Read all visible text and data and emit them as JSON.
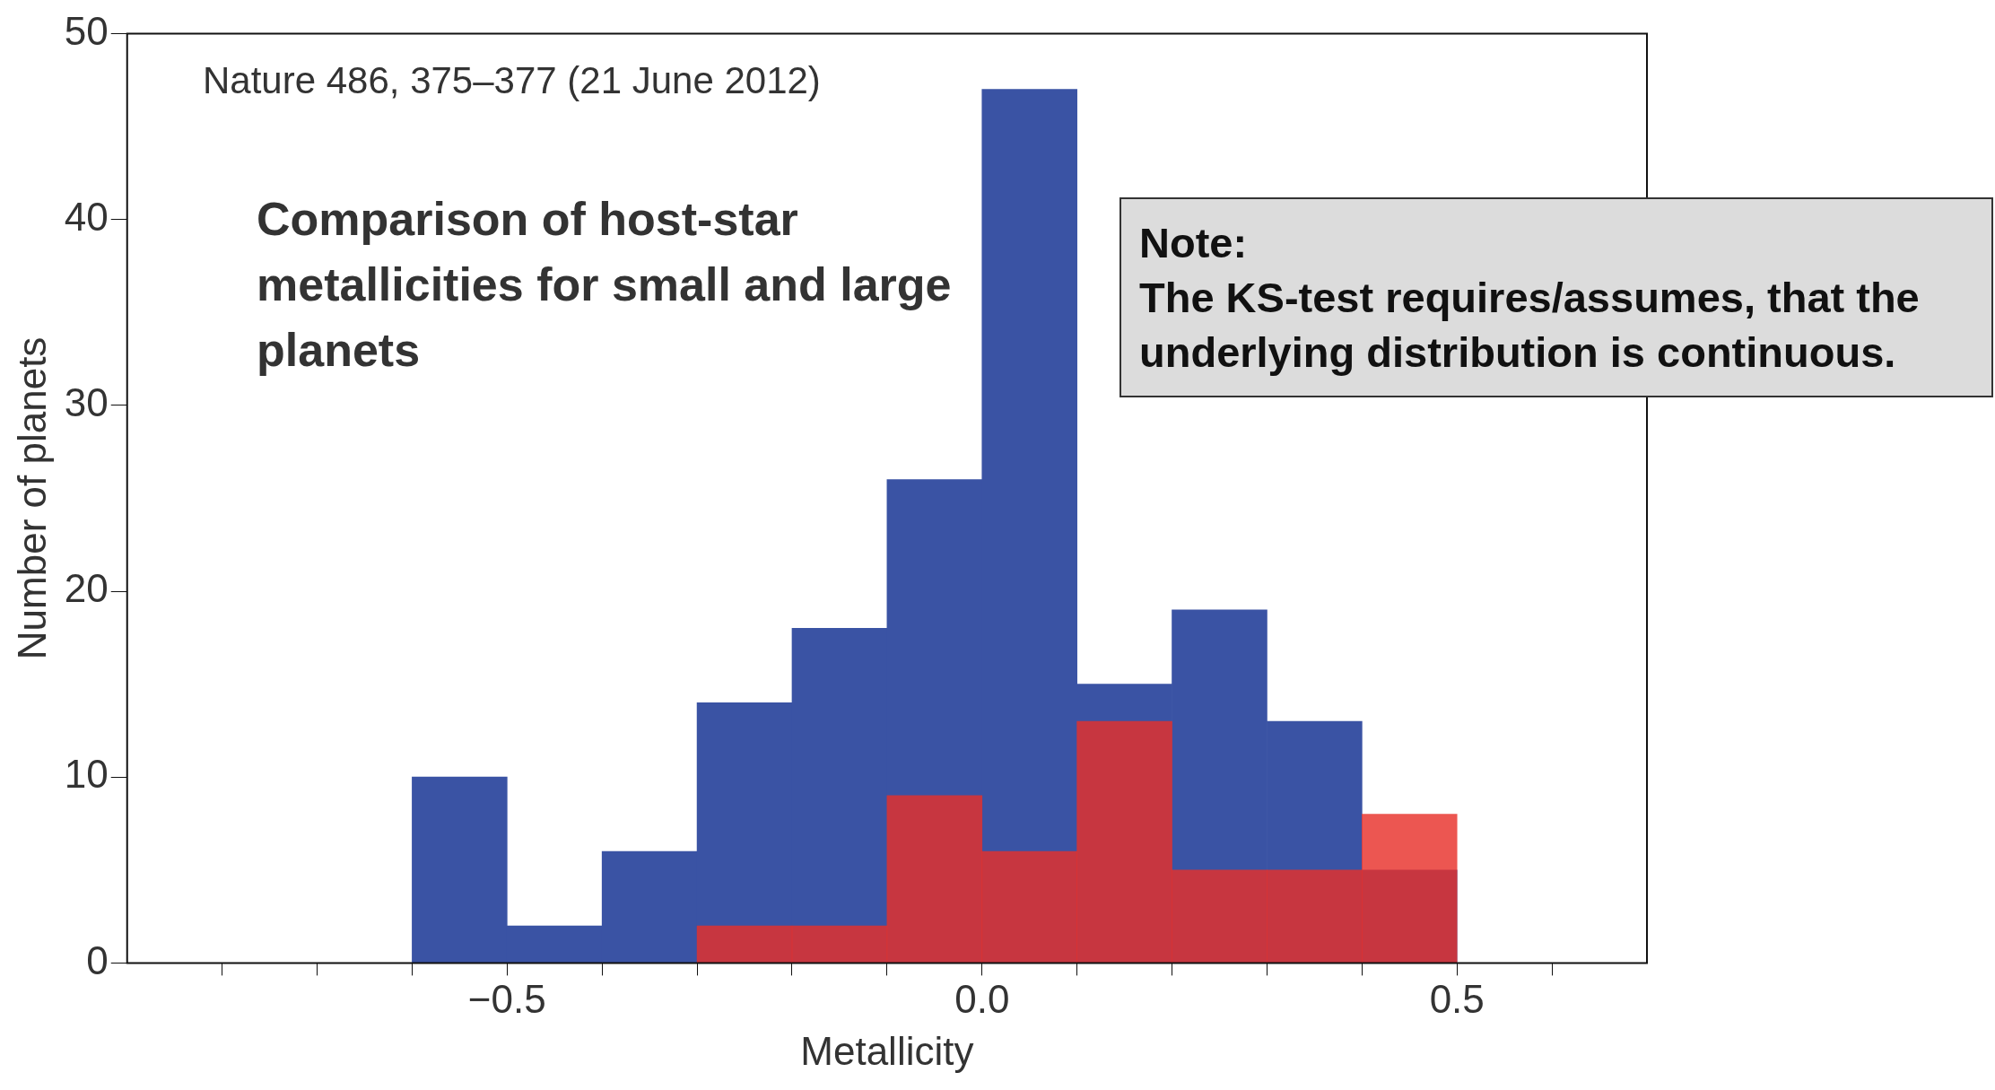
{
  "chart_data": {
    "type": "histogram",
    "title": "Comparison of host-star metallicities for small and large planets",
    "xlabel": "Metallicity",
    "ylabel": "Number of planets",
    "annotations": [
      "Nature 486, 375–377 (21 June 2012)",
      "Note:\nThe KS-test requires/assumes, that the underlying distribution is continuous."
    ],
    "bins": [
      -0.6,
      -0.5,
      -0.4,
      -0.3,
      -0.2,
      -0.1,
      0.0,
      0.1,
      0.2,
      0.3,
      0.4,
      0.5
    ],
    "series": [
      {
        "color": "#3a53a4",
        "values": [
          10,
          2,
          6,
          14,
          18,
          26,
          47,
          15,
          19,
          13,
          5
        ]
      },
      {
        "color": "#e8302a",
        "values": [
          0,
          0,
          0,
          2,
          2,
          9,
          6,
          13,
          5,
          5,
          8
        ]
      }
    ],
    "xlim": [
      -0.9,
      0.7
    ],
    "xticks": [
      {
        "value": -0.8,
        "label": null
      },
      {
        "value": -0.7,
        "label": null
      },
      {
        "value": -0.6,
        "label": null
      },
      {
        "value": -0.5,
        "label": "−0.5"
      },
      {
        "value": -0.4,
        "label": null
      },
      {
        "value": -0.3,
        "label": null
      },
      {
        "value": -0.2,
        "label": null
      },
      {
        "value": -0.1,
        "label": null
      },
      {
        "value": 0,
        "label": "0.0"
      },
      {
        "value": 0.1,
        "label": null
      },
      {
        "value": 0.2,
        "label": null
      },
      {
        "value": 0.3,
        "label": null
      },
      {
        "value": 0.4,
        "label": null
      },
      {
        "value": 0.5,
        "label": "0.5"
      },
      {
        "value": 0.6,
        "label": null
      }
    ],
    "ylim": [
      0,
      50
    ],
    "yticks": [
      0,
      10,
      20,
      30,
      40,
      50
    ],
    "grid": false,
    "legend": false
  }
}
